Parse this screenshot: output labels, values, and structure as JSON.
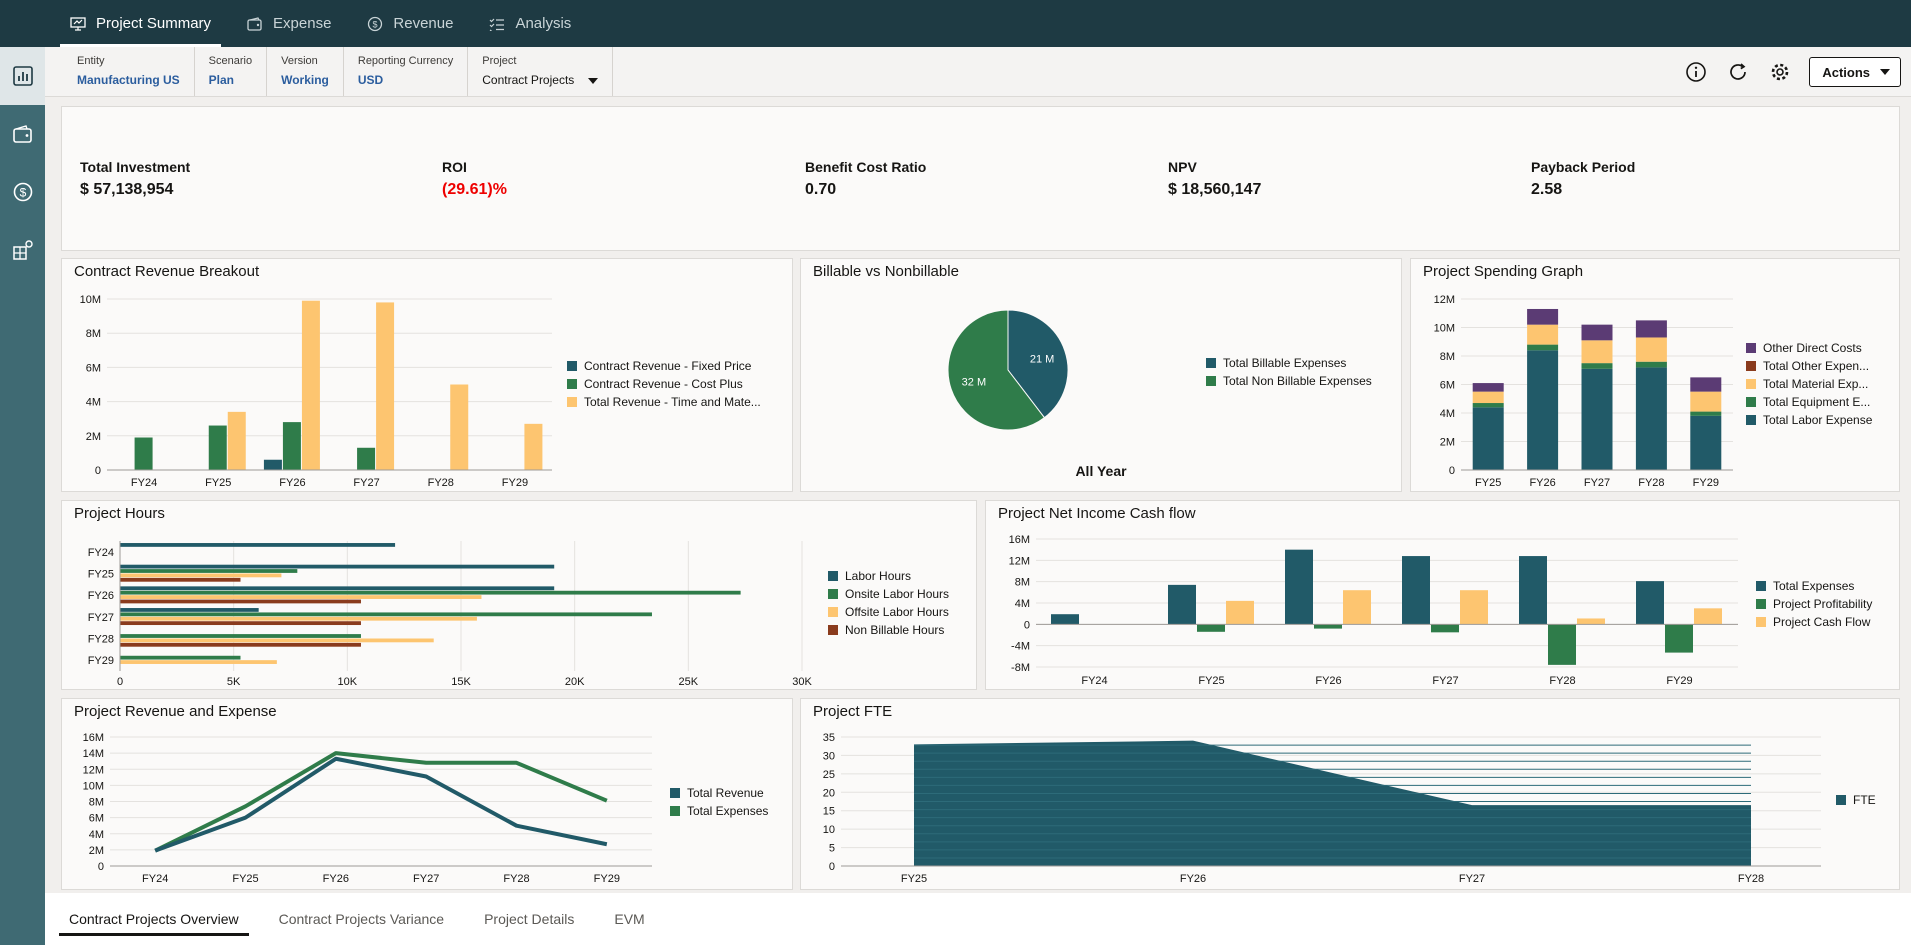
{
  "nav": {
    "tabs": [
      {
        "label": "Project Summary",
        "icon": "presentation-icon"
      },
      {
        "label": "Expense",
        "icon": "wallet-icon"
      },
      {
        "label": "Revenue",
        "icon": "dollar-coin-icon"
      },
      {
        "label": "Analysis",
        "icon": "checklist-icon"
      }
    ]
  },
  "pov": {
    "entity_label": "Entity",
    "entity_value": "Manufacturing US",
    "scenario_label": "Scenario",
    "scenario_value": "Plan",
    "version_label": "Version",
    "version_value": "Working",
    "currency_label": "Reporting Currency",
    "currency_value": "USD",
    "project_label": "Project",
    "project_value": "Contract Projects",
    "actions_label": "Actions"
  },
  "kpis": [
    {
      "label": "Total Investment",
      "value": "$ 57,138,954"
    },
    {
      "label": "ROI",
      "value": "(29.61)%"
    },
    {
      "label": "Benefit Cost Ratio",
      "value": "0.70"
    },
    {
      "label": "NPV",
      "value": "$ 18,560,147"
    },
    {
      "label": "Payback Period",
      "value": "2.58"
    }
  ],
  "colors": {
    "teal": "#215a68",
    "green": "#2f7c4a",
    "yellow": "#fdc570",
    "purple": "#5b3b74",
    "brown": "#8a3b1d",
    "negative": "#ee0000"
  },
  "panels": {
    "revenue_breakout": "Contract Revenue Breakout",
    "billable": "Billable vs Nonbillable",
    "spending": "Project Spending Graph",
    "hours": "Project Hours",
    "cashflow": "Project Net Income Cash flow",
    "rev_exp": "Project Revenue and Expense",
    "fte": "Project FTE"
  },
  "chart_data": [
    {
      "id": "revenue_breakout",
      "type": "bar",
      "categories": [
        "FY24",
        "FY25",
        "FY26",
        "FY27",
        "FY28",
        "FY29"
      ],
      "ylim": [
        0,
        10000000
      ],
      "yticks": [
        "0",
        "2M",
        "4M",
        "6M",
        "8M",
        "10M"
      ],
      "series": [
        {
          "name": "Contract Revenue - Fixed Price",
          "values": [
            0,
            0,
            600000,
            0,
            0,
            0
          ]
        },
        {
          "name": "Contract Revenue - Cost Plus",
          "values": [
            1900000,
            2600000,
            2800000,
            1300000,
            0,
            0
          ]
        },
        {
          "name": "Total Revenue - Time and Mate...",
          "values": [
            0,
            3400000,
            9900000,
            9800000,
            5000000,
            2700000
          ]
        }
      ]
    },
    {
      "id": "billable",
      "type": "pie",
      "footer": "All Year",
      "slices": [
        {
          "name": "Total Billable Expenses",
          "value": 21,
          "label": "21 M"
        },
        {
          "name": "Total Non Billable Expenses",
          "value": 32,
          "label": "32 M"
        }
      ]
    },
    {
      "id": "spending",
      "type": "bar",
      "stacked": true,
      "categories": [
        "FY25",
        "FY26",
        "FY27",
        "FY28",
        "FY29"
      ],
      "ylim": [
        0,
        12000000
      ],
      "yticks": [
        "0",
        "2M",
        "4M",
        "6M",
        "8M",
        "10M",
        "12M"
      ],
      "series": [
        {
          "name": "Total Labor Expense",
          "values": [
            4400000,
            8400000,
            7100000,
            7200000,
            3800000
          ]
        },
        {
          "name": "Total Equipment E...",
          "values": [
            300000,
            400000,
            400000,
            400000,
            300000
          ]
        },
        {
          "name": "Total Material Exp...",
          "values": [
            800000,
            1400000,
            1600000,
            1700000,
            1400000
          ]
        },
        {
          "name": "Total Other Expen...",
          "values": [
            0,
            0,
            0,
            0,
            0
          ]
        },
        {
          "name": "Other Direct Costs",
          "values": [
            600000,
            1100000,
            1100000,
            1200000,
            1000000
          ]
        }
      ]
    },
    {
      "id": "hours",
      "type": "bar",
      "orientation": "horizontal",
      "categories": [
        "FY24",
        "FY25",
        "FY26",
        "FY27",
        "FY28",
        "FY29"
      ],
      "xlim": [
        0,
        30000
      ],
      "xticks": [
        "0",
        "5K",
        "10K",
        "15K",
        "20K",
        "25K",
        "30K"
      ],
      "series": [
        {
          "name": "Labor Hours",
          "values": [
            12100,
            19100,
            19100,
            6100,
            0,
            0
          ]
        },
        {
          "name": "Onsite Labor Hours",
          "values": [
            0,
            7800,
            27300,
            23400,
            10600,
            5300
          ]
        },
        {
          "name": "Offsite Labor Hours",
          "values": [
            0,
            7100,
            15900,
            15700,
            13800,
            6900
          ]
        },
        {
          "name": "Non Billable Hours",
          "values": [
            0,
            5300,
            10600,
            10600,
            10600,
            0
          ]
        }
      ]
    },
    {
      "id": "cashflow",
      "type": "bar",
      "categories": [
        "FY24",
        "FY25",
        "FY26",
        "FY27",
        "FY28",
        "FY29"
      ],
      "ylim": [
        -8000000,
        16000000
      ],
      "yticks": [
        "-8M",
        "-4M",
        "0",
        "4M",
        "8M",
        "12M",
        "16M"
      ],
      "series": [
        {
          "name": "Total Expenses",
          "values": [
            1900000,
            7400000,
            14000000,
            12800000,
            12800000,
            8100000
          ]
        },
        {
          "name": "Project Profitability",
          "values": [
            0,
            -1400000,
            -800000,
            -1500000,
            -7600000,
            -5300000
          ]
        },
        {
          "name": "Project Cash Flow",
          "values": [
            0,
            4400000,
            6400000,
            6400000,
            1100000,
            3000000
          ]
        }
      ]
    },
    {
      "id": "rev_exp",
      "type": "line",
      "categories": [
        "FY24",
        "FY25",
        "FY26",
        "FY27",
        "FY28",
        "FY29"
      ],
      "ylim": [
        0,
        16000000
      ],
      "yticks": [
        "0",
        "2M",
        "4M",
        "6M",
        "8M",
        "10M",
        "12M",
        "14M",
        "16M"
      ],
      "series": [
        {
          "name": "Total Revenue",
          "values": [
            1900000,
            6000000,
            13300000,
            11100000,
            5000000,
            2700000
          ]
        },
        {
          "name": "Total Expenses",
          "values": [
            1900000,
            7400000,
            14000000,
            12800000,
            12800000,
            8100000
          ]
        }
      ]
    },
    {
      "id": "fte",
      "type": "area",
      "categories": [
        "FY25",
        "FY26",
        "FY27",
        "FY28"
      ],
      "ylim": [
        0,
        35
      ],
      "yticks": [
        "0",
        "5",
        "10",
        "15",
        "20",
        "25",
        "30",
        "35"
      ],
      "series": [
        {
          "name": "FTE",
          "values": [
            33,
            34,
            16.5,
            16.5
          ]
        }
      ]
    }
  ],
  "bottom_tabs": [
    "Contract Projects Overview",
    "Contract Projects Variance",
    "Project Details",
    "EVM"
  ]
}
